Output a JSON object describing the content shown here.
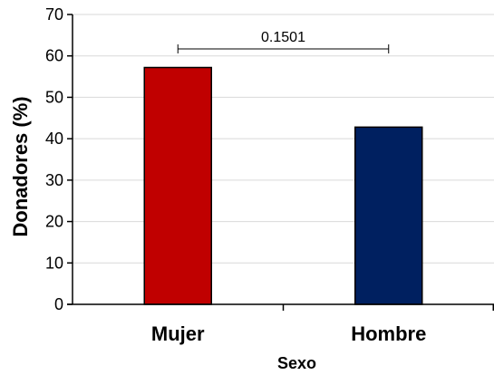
{
  "chart_data": {
    "type": "bar",
    "categories": [
      "Mujer",
      "Hombre"
    ],
    "values": [
      57.2,
      42.8
    ],
    "colors": [
      "#c00000",
      "#002060"
    ],
    "xlabel": "Sexo",
    "ylabel": "Donadores (%)",
    "ylim": [
      0,
      70
    ],
    "yticks": [
      0,
      10,
      20,
      30,
      40,
      50,
      60,
      70
    ],
    "grid": true,
    "annotation": {
      "text": "0.1501",
      "from": "Mujer",
      "to": "Hombre"
    }
  }
}
